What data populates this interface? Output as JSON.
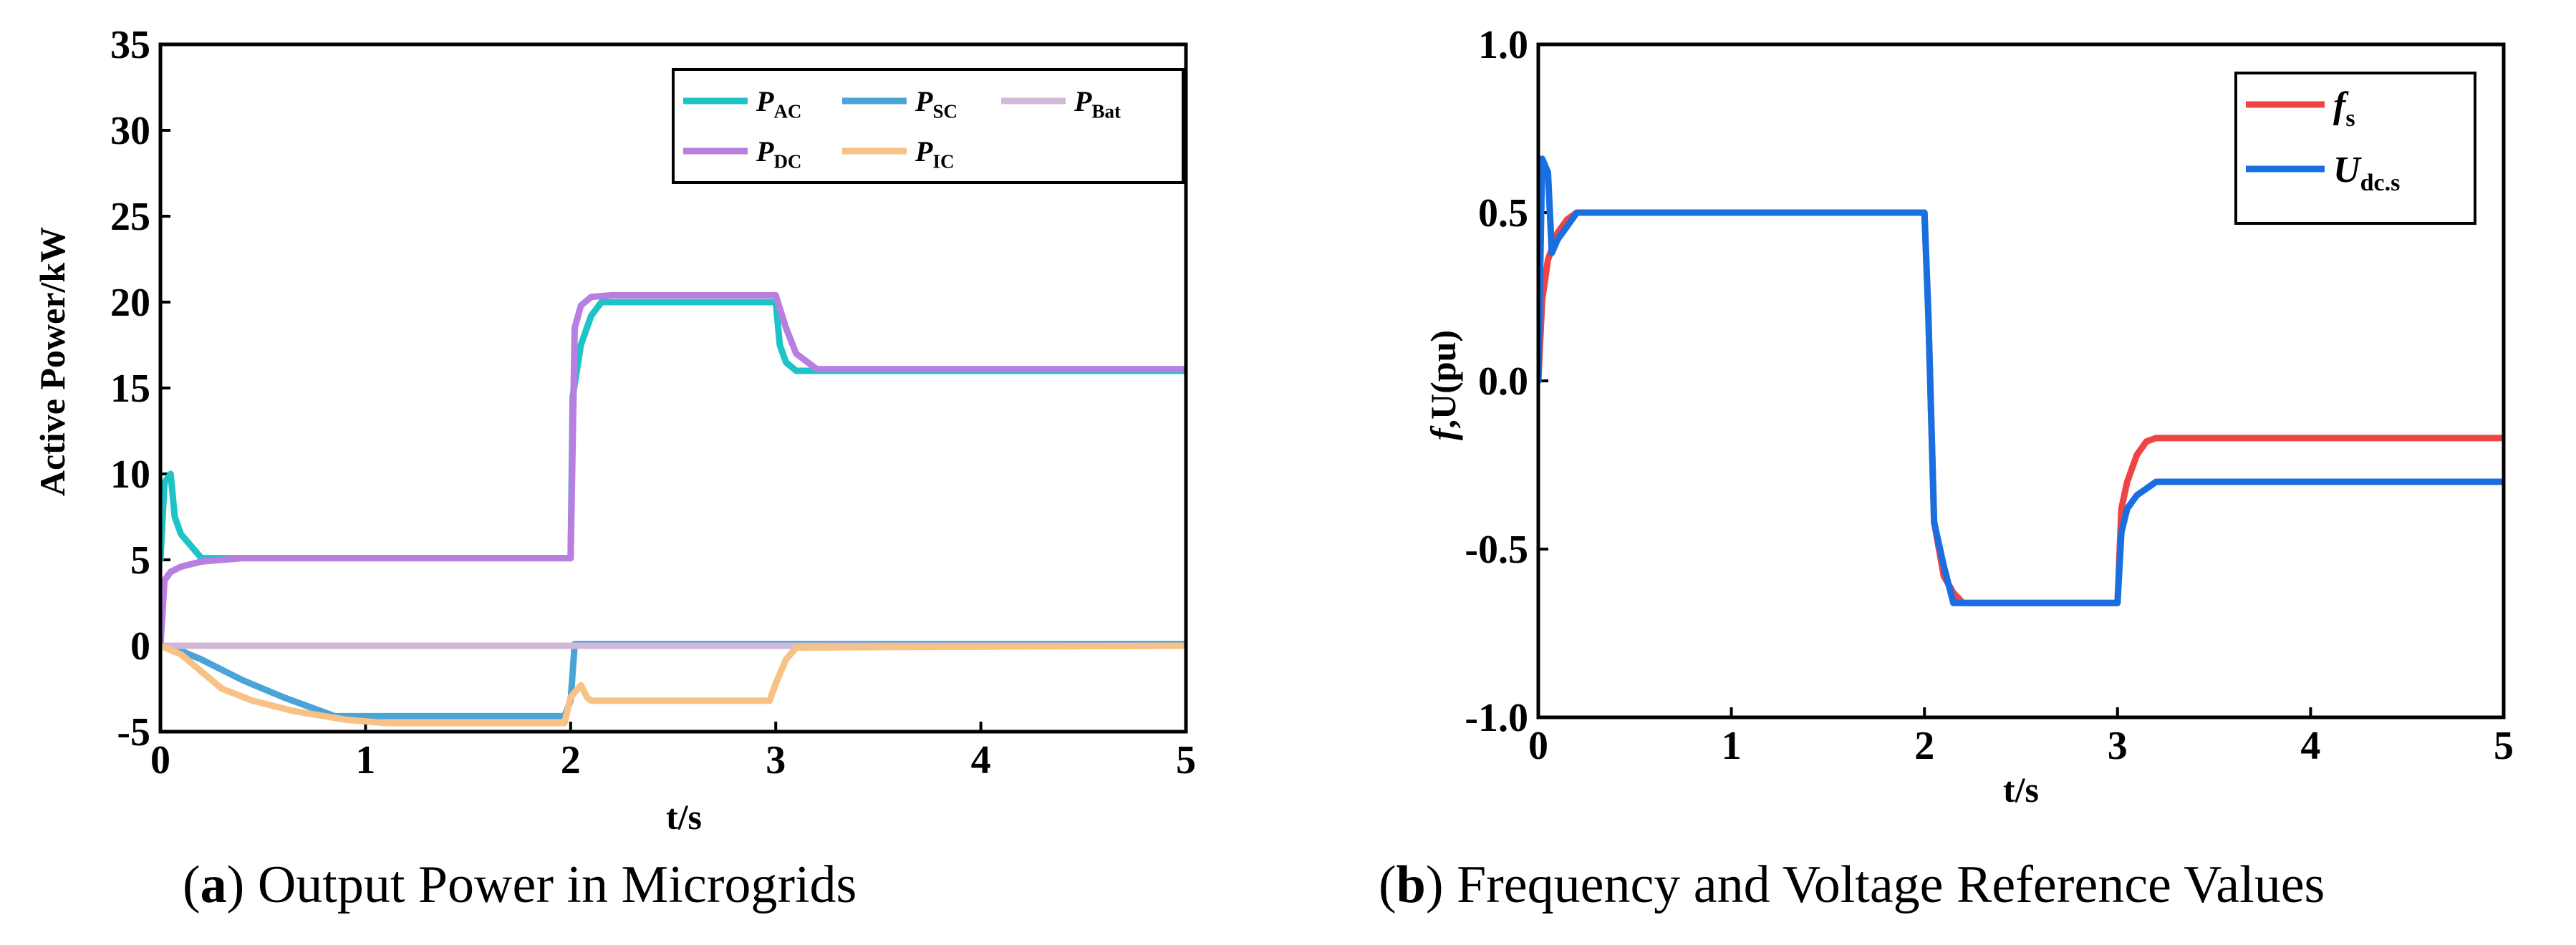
{
  "chart_data": [
    {
      "type": "line",
      "panel_label": "a",
      "caption": "Output Power in Microgrids",
      "xlabel": "t/s",
      "ylabel": "Active Power/kW",
      "xlim": [
        0,
        5
      ],
      "ylim": [
        -5,
        35
      ],
      "xticks": [
        "0",
        "1",
        "2",
        "3",
        "4",
        "5"
      ],
      "yticks": [
        "-5",
        "0",
        "5",
        "10",
        "15",
        "20",
        "25",
        "30",
        "35"
      ],
      "legend_position": "top-right",
      "series": [
        {
          "name": "P",
          "sub": "AC",
          "color": "#1ec3c8",
          "x": [
            0,
            0.02,
            0.05,
            0.07,
            0.1,
            0.2,
            0.3,
            2.0,
            2.01,
            2.05,
            2.1,
            2.15,
            2.5,
            3.0,
            3.02,
            3.05,
            3.1,
            5.0
          ],
          "y": [
            5,
            9.5,
            10.0,
            7.5,
            6.5,
            5.1,
            5.1,
            5.1,
            14.5,
            17.5,
            19.2,
            20.0,
            20.0,
            20.0,
            17.5,
            16.5,
            16.0,
            16.0
          ]
        },
        {
          "name": "P",
          "sub": "SC",
          "color": "#4aa4d8",
          "x": [
            0,
            0.1,
            0.2,
            0.3,
            0.4,
            0.6,
            0.85,
            1.0,
            1.5,
            1.97,
            2.0,
            2.02,
            2.1,
            5.0
          ],
          "y": [
            0,
            -0.3,
            -0.8,
            -1.4,
            -2.0,
            -3.0,
            -4.1,
            -4.1,
            -4.1,
            -4.1,
            -3.2,
            0.1,
            0.1,
            0.1
          ]
        },
        {
          "name": "P",
          "sub": "Bat",
          "color": "#d2b8d8",
          "x": [
            0,
            5.0
          ],
          "y": [
            0,
            0
          ]
        },
        {
          "name": "P",
          "sub": "DC",
          "color": "#b87ee0",
          "x": [
            0,
            0.02,
            0.05,
            0.1,
            0.2,
            0.3,
            0.4,
            2.0,
            2.02,
            2.05,
            2.1,
            2.2,
            2.5,
            3.0,
            3.05,
            3.1,
            3.2,
            5.0
          ],
          "y": [
            0,
            3.8,
            4.3,
            4.6,
            4.9,
            5.0,
            5.1,
            5.1,
            18.5,
            19.8,
            20.3,
            20.4,
            20.4,
            20.4,
            18.5,
            17.0,
            16.1,
            16.1
          ]
        },
        {
          "name": "P",
          "sub": "IC",
          "color": "#f8c185",
          "x": [
            0,
            0.1,
            0.2,
            0.3,
            0.45,
            0.65,
            0.9,
            1.1,
            1.5,
            1.97,
            2.0,
            2.05,
            2.08,
            2.1,
            2.5,
            2.97,
            3.0,
            3.05,
            3.1,
            5.0
          ],
          "y": [
            0,
            -0.5,
            -1.5,
            -2.5,
            -3.2,
            -3.8,
            -4.3,
            -4.5,
            -4.5,
            -4.5,
            -3.0,
            -2.3,
            -3.0,
            -3.2,
            -3.2,
            -3.2,
            -2.2,
            -0.8,
            -0.1,
            0.0
          ]
        }
      ]
    },
    {
      "type": "line",
      "panel_label": "b",
      "caption": "Frequency and Voltage Reference Values",
      "xlabel": "t/s",
      "ylabel_italic": "f",
      "ylabel": ",U(pu)",
      "xlim": [
        0,
        5
      ],
      "ylim": [
        -1.0,
        1.0
      ],
      "xticks": [
        "0",
        "1",
        "2",
        "3",
        "4",
        "5"
      ],
      "yticks": [
        "-1.0",
        "-0.5",
        "0.0",
        "0.5",
        "1.0"
      ],
      "legend_position": "top-right",
      "series": [
        {
          "name": "f",
          "sub": "s",
          "color": "#ee4444",
          "x": [
            0,
            0.02,
            0.05,
            0.1,
            0.15,
            0.2,
            0.3,
            2.0,
            2.02,
            2.05,
            2.1,
            2.15,
            2.2,
            2.5,
            3.0,
            3.02,
            3.05,
            3.1,
            3.15,
            3.2,
            5.0
          ],
          "y": [
            0,
            0.24,
            0.36,
            0.44,
            0.48,
            0.5,
            0.5,
            0.5,
            0.2,
            -0.42,
            -0.58,
            -0.63,
            -0.66,
            -0.66,
            -0.66,
            -0.38,
            -0.3,
            -0.22,
            -0.18,
            -0.17,
            -0.17
          ]
        },
        {
          "name": "U",
          "sub": "dc.s",
          "color": "#1a6fe0",
          "x": [
            0,
            0.02,
            0.05,
            0.07,
            0.1,
            0.2,
            0.3,
            2.0,
            2.02,
            2.05,
            2.1,
            2.15,
            2.5,
            3.0,
            3.02,
            3.05,
            3.1,
            3.2,
            5.0
          ],
          "y": [
            0,
            0.66,
            0.62,
            0.38,
            0.42,
            0.5,
            0.5,
            0.5,
            0.2,
            -0.42,
            -0.55,
            -0.66,
            -0.66,
            -0.66,
            -0.45,
            -0.38,
            -0.34,
            -0.3,
            -0.3
          ]
        }
      ]
    }
  ]
}
